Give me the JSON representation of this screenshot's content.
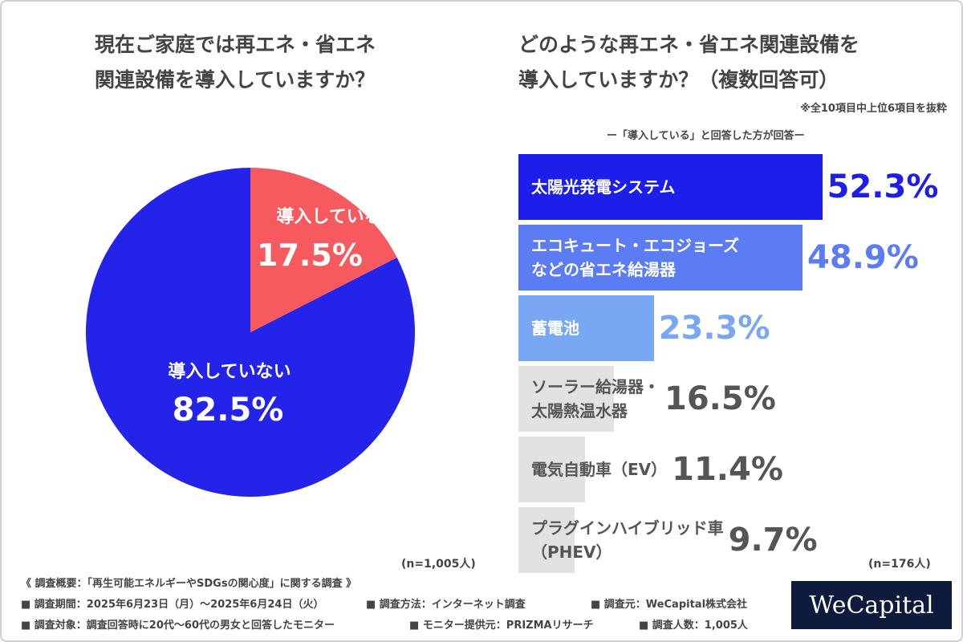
{
  "left_title": "現在ご家庭では再エネ・省エネ\n関連設備を導入していますか？",
  "right_title": "どのような再エネ・省エネ関連設備を\n導入していますか？（複数回答可）",
  "note": "※全10項目中上位6項目を抜粋",
  "subtitle": "ー「導入している」と回答した方が回答ー",
  "colors": {
    "pie_in": "#f75a5e",
    "pie_out": "#2323ea"
  },
  "chart_data": [
    {
      "type": "pie",
      "slices": [
        {
          "label": "導入している",
          "value": 17.5,
          "value_label": "17.5%",
          "color": "#f75a5e"
        },
        {
          "label": "導入していない",
          "value": 82.5,
          "value_label": "82.5%",
          "color": "#2323ea"
        }
      ],
      "sample_size": "(n=1,005人)"
    },
    {
      "type": "bar",
      "orientation": "horizontal",
      "categories": [
        "太陽光発電システム",
        "エコキュート・エコジョーズ\nなどの省エネ給湯器",
        "蓄電池",
        "ソーラー給湯器・\n太陽熱温水器",
        "電気自動車（EV）",
        "プラグインハイブリッド車\n（PHEV）"
      ],
      "values": [
        52.3,
        48.9,
        23.3,
        16.5,
        11.4,
        9.7
      ],
      "value_labels": [
        "52.3%",
        "48.9%",
        "23.3%",
        "16.5%",
        "11.4%",
        "9.7%"
      ],
      "colors": [
        "#1e1eea",
        "#5b7cf2",
        "#7aa7f4",
        "#e3e1e1",
        "#e3e1e1",
        "#e3e1e1"
      ],
      "label_colors": [
        "#ffffff",
        "#ffffff",
        "#ffffff",
        "#555555",
        "#555555",
        "#555555"
      ],
      "value_colors": [
        "#1e1eea",
        "#5b7cf2",
        "#7aa7f4",
        "#555555",
        "#555555",
        "#555555"
      ],
      "sample_size": "(n=176人)"
    }
  ],
  "footer": {
    "survey": "《 調査概要：「再生可能エネルギーやSDGsの関心度」に関する調査 》",
    "period": "■ 調査期間：2025年6月23日（月）～2025年6月24日（火）",
    "method": "■ 調査方法：インターネット調査",
    "source": "■ 調査元：WeCapital株式会社",
    "target": "■ 調査対象：調査回答時に20代～60代の男女と回答したモニター",
    "provider": "■ モニター提供元：PRIZMAリサーチ",
    "count": "■ 調査人数：1,005人"
  },
  "logo": "WeCapital"
}
